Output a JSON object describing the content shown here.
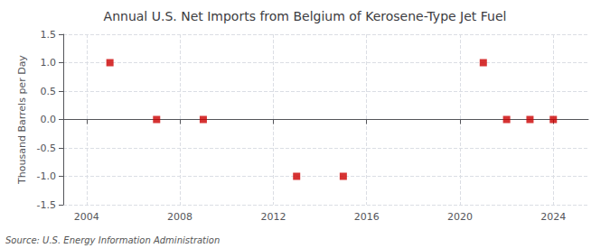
{
  "chart_data": {
    "type": "scatter",
    "title": "Annual U.S. Net Imports from Belgium of Kerosene-Type Jet Fuel",
    "ylabel": "Thousand Barrels per Day",
    "annotation": "Source: U.S. Energy Information Administration",
    "x": [
      2005,
      2007,
      2009,
      2013,
      2015,
      2021,
      2022,
      2023,
      2024
    ],
    "values": [
      1.0,
      0.0,
      0.0,
      -1.0,
      -1.0,
      1.0,
      0.0,
      0.0,
      0.0
    ],
    "color": "#cc0000",
    "marker": "square",
    "xlim": [
      2003.0,
      2025.5
    ],
    "xticks": [
      2004,
      2008,
      2012,
      2016,
      2020,
      2024
    ],
    "ylim": [
      -1.5,
      1.5
    ],
    "yticks": [
      -1.5,
      {
        "value": -1,
        "label": "-1.0"
      },
      -0.5,
      {
        "value": 0,
        "label": "0.0"
      },
      0.5,
      {
        "value": 1,
        "label": "1.0"
      },
      1.5
    ],
    "grid": true
  }
}
